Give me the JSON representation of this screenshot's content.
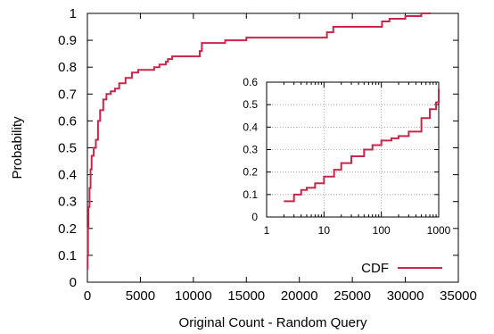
{
  "chart_data": [
    {
      "type": "line",
      "title": "",
      "xlabel": "Original Count - Random Query",
      "ylabel": "Probability",
      "xlim": [
        0,
        35000
      ],
      "ylim": [
        0,
        1
      ],
      "x_ticks": [
        0,
        5000,
        10000,
        15000,
        20000,
        25000,
        30000,
        35000
      ],
      "y_ticks": [
        0,
        0.1,
        0.2,
        0.3,
        0.4,
        0.5,
        0.6,
        0.7,
        0.8,
        0.9,
        1
      ],
      "grid": false,
      "legend": "bottom-right",
      "series": [
        {
          "name": "CDF",
          "color": "#c8264a",
          "x": [
            0,
            20,
            60,
            100,
            200,
            300,
            400,
            600,
            800,
            1000,
            1200,
            1500,
            1800,
            2200,
            2600,
            3000,
            3600,
            4200,
            4800,
            5500,
            6300,
            6800,
            7200,
            7400,
            7600,
            8000,
            10600,
            10800,
            13000,
            15000,
            17000,
            22000,
            22600,
            23200,
            26000,
            27800,
            28500,
            30000,
            31500,
            32400
          ],
          "y": [
            0.05,
            0.1,
            0.2,
            0.28,
            0.35,
            0.42,
            0.47,
            0.5,
            0.53,
            0.6,
            0.64,
            0.68,
            0.7,
            0.71,
            0.72,
            0.74,
            0.76,
            0.78,
            0.79,
            0.79,
            0.8,
            0.81,
            0.81,
            0.82,
            0.83,
            0.84,
            0.86,
            0.89,
            0.9,
            0.91,
            0.91,
            0.91,
            0.93,
            0.95,
            0.95,
            0.97,
            0.98,
            0.99,
            1.0,
            1.0
          ]
        }
      ]
    },
    {
      "type": "line",
      "title": "",
      "inset": true,
      "xscale": "log",
      "xlim": [
        1,
        1000
      ],
      "ylim": [
        0,
        0.6
      ],
      "x_ticks": [
        1,
        10,
        100,
        1000
      ],
      "y_ticks": [
        0,
        0.1,
        0.2,
        0.3,
        0.4,
        0.5,
        0.6
      ],
      "grid": true,
      "series": [
        {
          "color": "#c8264a",
          "x": [
            2,
            3,
            4,
            5,
            7,
            10,
            15,
            20,
            30,
            50,
            70,
            100,
            150,
            200,
            300,
            500,
            700,
            900,
            1000
          ],
          "y": [
            0.07,
            0.1,
            0.12,
            0.13,
            0.15,
            0.18,
            0.21,
            0.24,
            0.27,
            0.3,
            0.32,
            0.34,
            0.35,
            0.36,
            0.38,
            0.44,
            0.48,
            0.51,
            0.57
          ]
        }
      ]
    }
  ]
}
